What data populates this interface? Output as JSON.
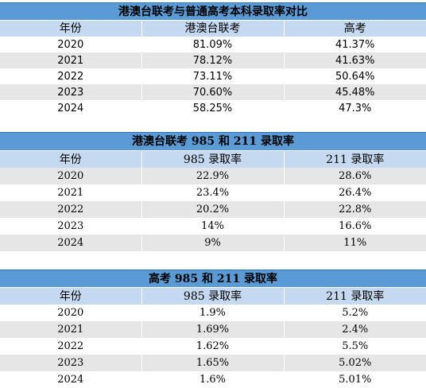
{
  "tables": [
    {
      "title": "港澳台联考与普通高考本科录取率对比",
      "headers": [
        "年份",
        "港澳台联考",
        "高考"
      ],
      "rows": [
        [
          "2020",
          "81.09%",
          "41.37%"
        ],
        [
          "2021",
          "78.12%",
          "41.63%"
        ],
        [
          "2022",
          "73.11%",
          "50.64%"
        ],
        [
          "2023",
          "70.60%",
          "45.48%"
        ],
        [
          "2024",
          "58.25%",
          "47.3%"
        ]
      ]
    },
    {
      "title": "港澳台联考 985 和 211 录取率",
      "headers": [
        "年份",
        "985 录取率",
        "211 录取率"
      ],
      "rows": [
        [
          "2020",
          "22.9%",
          "28.6%"
        ],
        [
          "2021",
          "23.4%",
          "26.4%"
        ],
        [
          "2022",
          "20.2%",
          "22.8%"
        ],
        [
          "2023",
          "14%",
          "16.6%"
        ],
        [
          "2024",
          "9%",
          "11%"
        ]
      ]
    },
    {
      "title": "高考 985 和 211 录取率",
      "headers": [
        "年份",
        "985 录取率",
        "211 录取率"
      ],
      "rows": [
        [
          "2020",
          "1.9%",
          "5.2%"
        ],
        [
          "2021",
          "1.69%",
          "2.4%"
        ],
        [
          "2022",
          "1.62%",
          "5.5%"
        ],
        [
          "2023",
          "1.65%",
          "5.02%"
        ],
        [
          "2024",
          "1.6%",
          "5.01%"
        ]
      ]
    }
  ],
  "colors": {
    "title_bg": "#5b9bd5",
    "header_bg": "#c5d9f1",
    "row_alt_bg": "#e7e6e6",
    "row_bg": "#ffffff"
  }
}
